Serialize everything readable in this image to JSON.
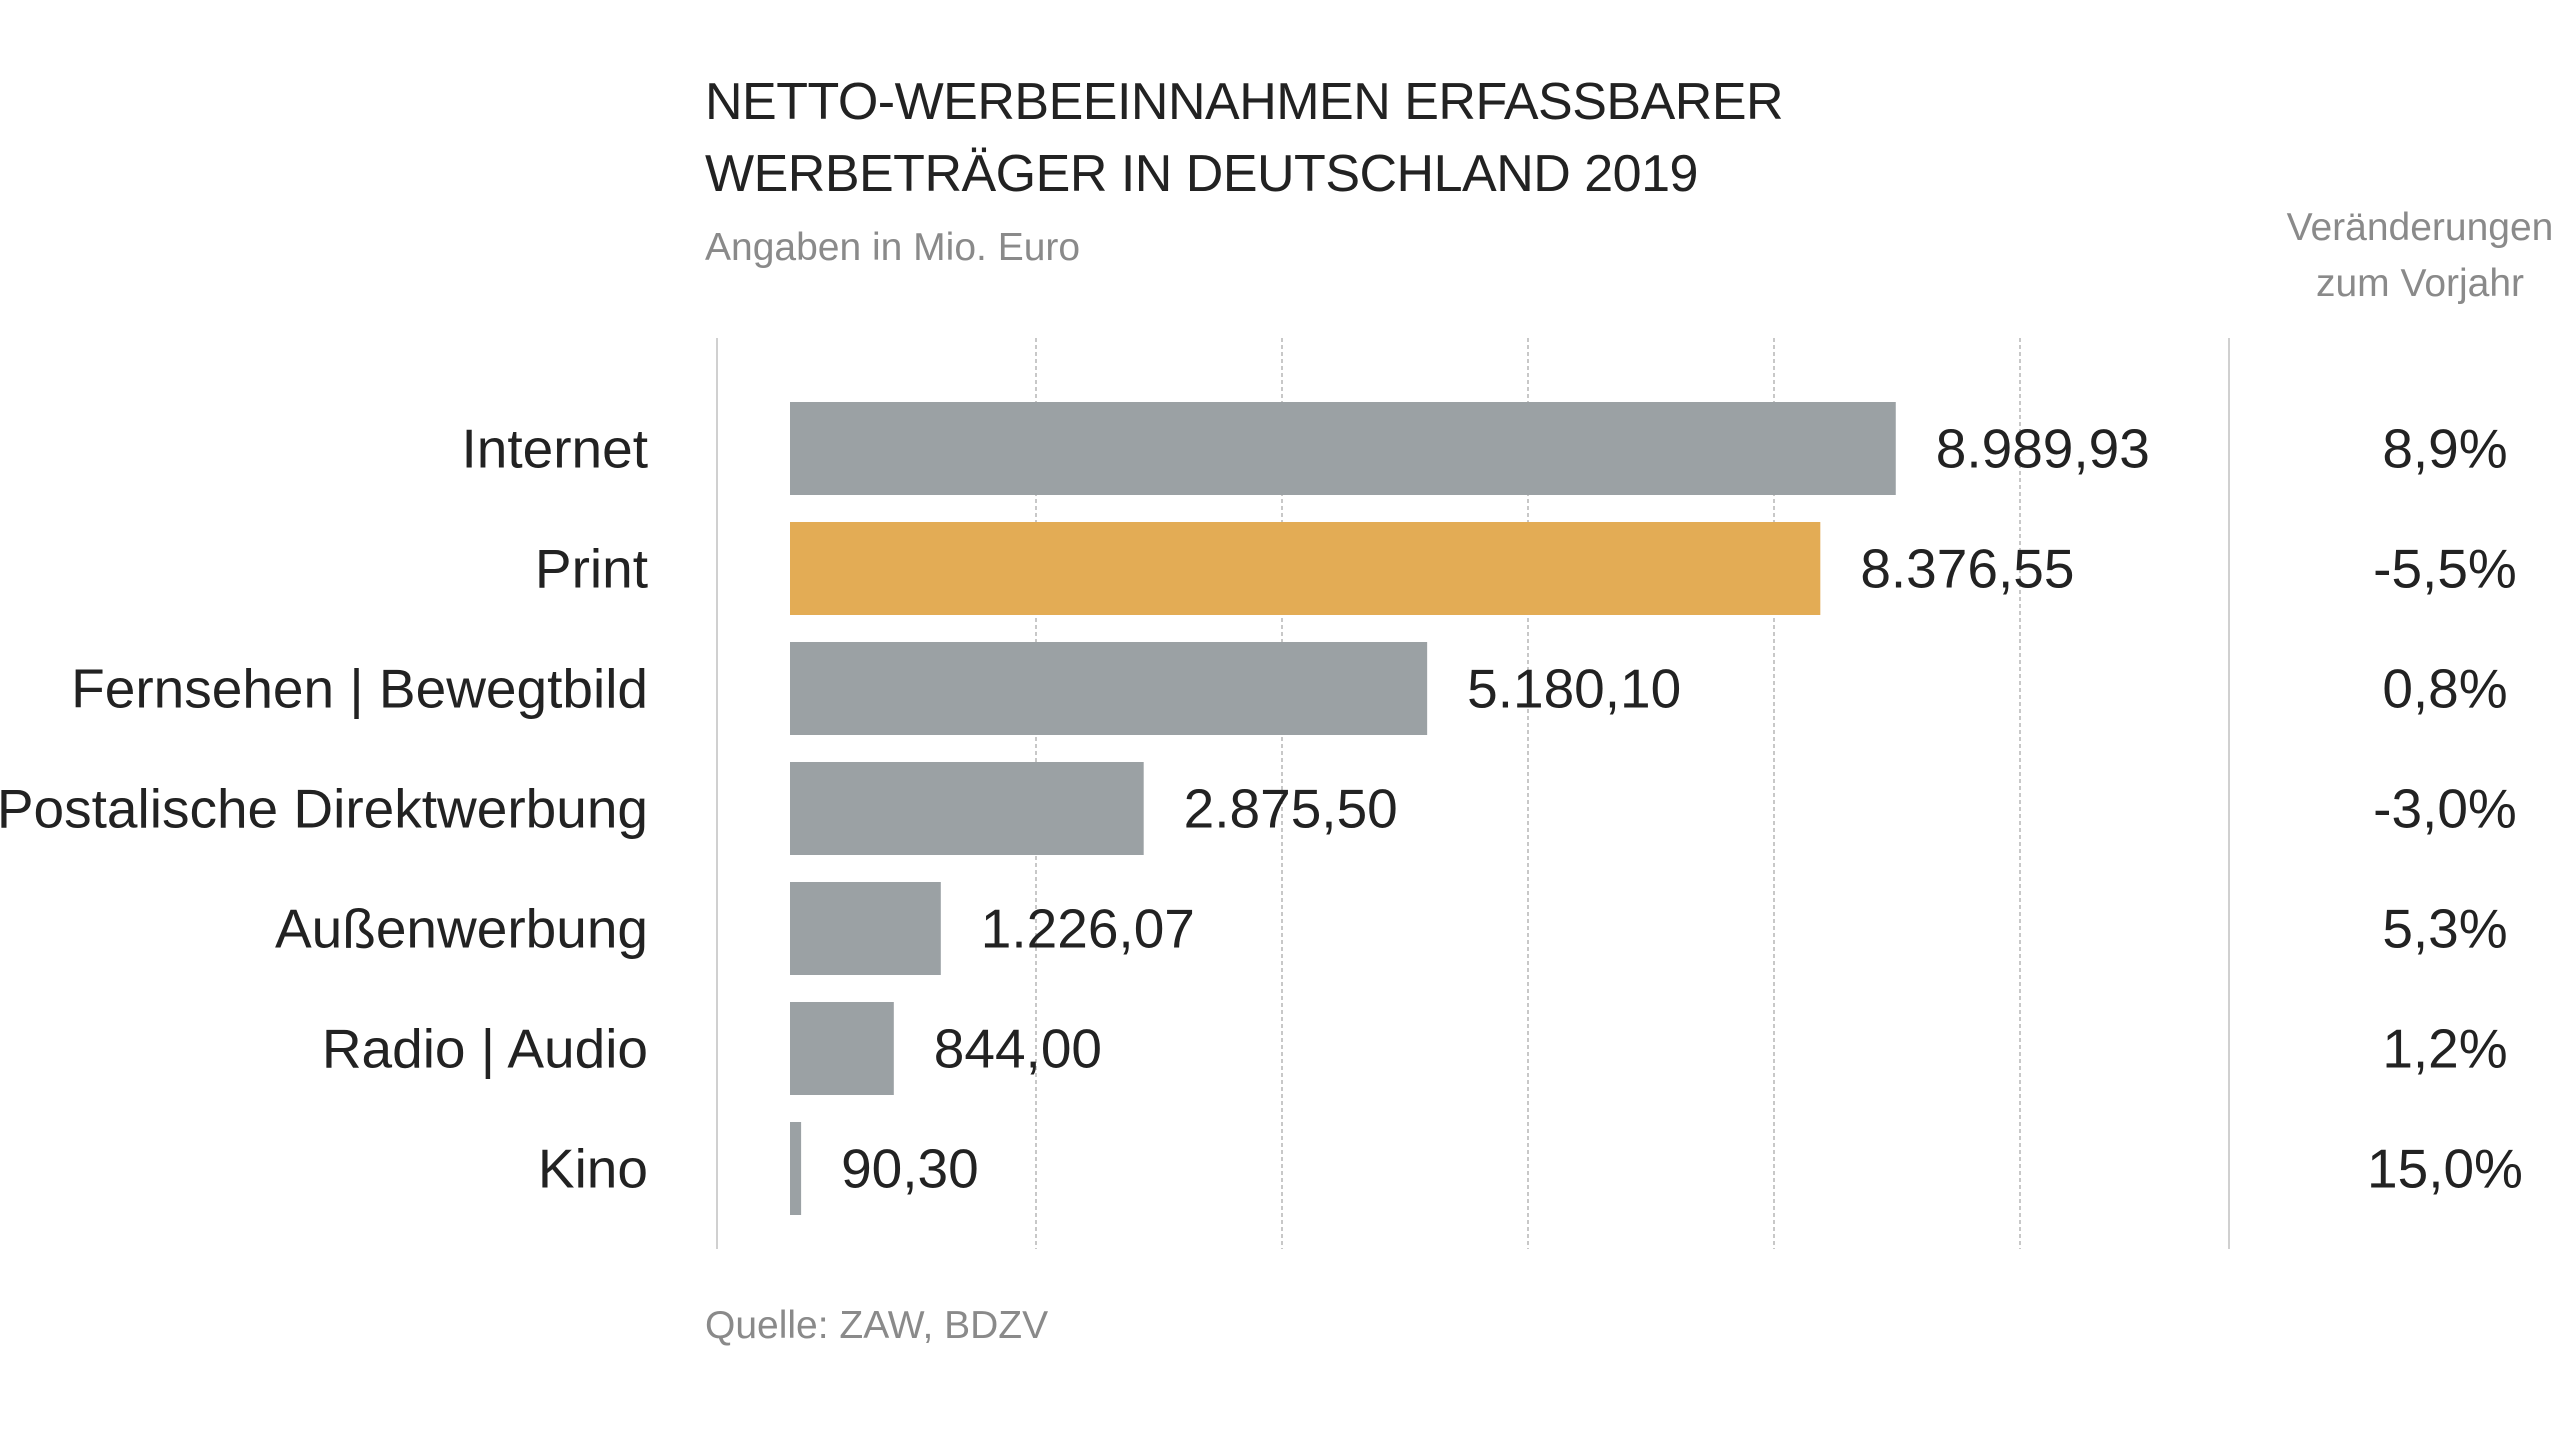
{
  "chart_data": {
    "type": "bar",
    "orientation": "horizontal",
    "title": "NETTO-WERBEEINNAHMEN ERFASSBARER WERBETRÄGER IN DEUTSCHLAND 2019",
    "title_lines": [
      "NETTO-WERBEEINNAHMEN ERFASSBARER",
      "WERBETRÄGER IN DEUTSCHLAND 2019"
    ],
    "subtitle": "Angaben in Mio. Euro",
    "change_header_lines": [
      "Veränderungen",
      "zum Vorjahr"
    ],
    "source": "Quelle: ZAW, BDZV",
    "categories": [
      "Internet",
      "Print",
      "Fernsehen | Bewegtbild",
      "Postalische Direktwerbung",
      "Außenwerbung",
      "Radio | Audio",
      "Kino"
    ],
    "values": [
      8989.93,
      8376.55,
      5180.1,
      2875.5,
      1226.07,
      844.0,
      90.3
    ],
    "value_labels": [
      "8.989,93",
      "8.376,55",
      "5.180,10",
      "2.875,50",
      "1.226,07",
      "844,00",
      "90,30"
    ],
    "changes": [
      "8,9%",
      "-5,5%",
      "0,8%",
      "-3,0%",
      "5,3%",
      "1,2%",
      "15,0%"
    ],
    "xlim": [
      0,
      10000
    ],
    "gridlines": [
      2000,
      4000,
      6000,
      8000,
      10000
    ],
    "grid": true,
    "colors": {
      "default": "#9ba1a4",
      "highlight": "#e3ac55",
      "highlight_category": "Print",
      "grid": "#b5b5b5"
    }
  }
}
